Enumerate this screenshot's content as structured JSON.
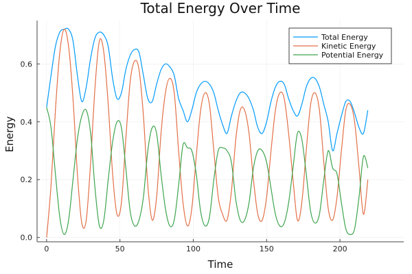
{
  "chart_data": {
    "type": "line",
    "title": "Total Energy Over Time",
    "xlabel": "Time",
    "ylabel": "Energy",
    "xlim": [
      -6.5,
      243.5
    ],
    "ylim": [
      -0.015,
      0.75
    ],
    "xticks": [
      0,
      50,
      100,
      150,
      200
    ],
    "xtick_labels": [
      "0",
      "50",
      "100",
      "150",
      "200"
    ],
    "yticks": [
      0.0,
      0.2,
      0.4,
      0.6
    ],
    "ytick_labels": [
      "0.0",
      "0.2",
      "0.4",
      "0.6"
    ],
    "grid": true,
    "legend_position": "top-right",
    "x": [
      0,
      3,
      6,
      9,
      12,
      15,
      18,
      21,
      24,
      27,
      30,
      33,
      36,
      39,
      42,
      45,
      48,
      51,
      54,
      57,
      60,
      63,
      66,
      69,
      72,
      75,
      78,
      81,
      84,
      87,
      90,
      93,
      96,
      99,
      102,
      105,
      108,
      111,
      114,
      117,
      120,
      123,
      126,
      129,
      132,
      135,
      138,
      141,
      144,
      147,
      150,
      153,
      156,
      159,
      162,
      165,
      168,
      171,
      174,
      177,
      180,
      183,
      186,
      189,
      192,
      195,
      198,
      201,
      204,
      207,
      210,
      213,
      216,
      219
    ],
    "series": [
      {
        "name": "Total Energy",
        "color": "#009AFA",
        "values": [
          0.45,
          0.56,
          0.66,
          0.71,
          0.72,
          0.72,
          0.68,
          0.56,
          0.47,
          0.52,
          0.62,
          0.69,
          0.71,
          0.7,
          0.66,
          0.55,
          0.48,
          0.5,
          0.58,
          0.63,
          0.65,
          0.64,
          0.56,
          0.48,
          0.47,
          0.53,
          0.58,
          0.6,
          0.59,
          0.56,
          0.48,
          0.44,
          0.4,
          0.44,
          0.5,
          0.53,
          0.54,
          0.53,
          0.5,
          0.44,
          0.39,
          0.36,
          0.42,
          0.47,
          0.5,
          0.5,
          0.48,
          0.44,
          0.38,
          0.36,
          0.4,
          0.47,
          0.52,
          0.54,
          0.53,
          0.48,
          0.44,
          0.42,
          0.46,
          0.52,
          0.55,
          0.55,
          0.52,
          0.46,
          0.4,
          0.3,
          0.36,
          0.42,
          0.47,
          0.47,
          0.43,
          0.38,
          0.36,
          0.44
        ]
      },
      {
        "name": "Kinetic Energy",
        "color": "#E26F46",
        "values": [
          0.0,
          0.18,
          0.44,
          0.64,
          0.72,
          0.66,
          0.48,
          0.22,
          0.05,
          0.06,
          0.26,
          0.52,
          0.68,
          0.64,
          0.46,
          0.22,
          0.08,
          0.12,
          0.34,
          0.54,
          0.61,
          0.58,
          0.42,
          0.18,
          0.06,
          0.14,
          0.36,
          0.5,
          0.55,
          0.5,
          0.3,
          0.12,
          0.04,
          0.1,
          0.28,
          0.44,
          0.5,
          0.46,
          0.3,
          0.14,
          0.08,
          0.06,
          0.16,
          0.34,
          0.44,
          0.44,
          0.36,
          0.2,
          0.08,
          0.06,
          0.14,
          0.3,
          0.44,
          0.5,
          0.48,
          0.36,
          0.2,
          0.06,
          0.12,
          0.3,
          0.46,
          0.5,
          0.44,
          0.26,
          0.1,
          0.06,
          0.14,
          0.3,
          0.44,
          0.46,
          0.4,
          0.24,
          0.08,
          0.2
        ]
      },
      {
        "name": "Potential Energy",
        "color": "#3DA44D",
        "values": [
          0.45,
          0.38,
          0.22,
          0.07,
          0.01,
          0.06,
          0.2,
          0.34,
          0.42,
          0.44,
          0.36,
          0.17,
          0.04,
          0.06,
          0.2,
          0.33,
          0.4,
          0.38,
          0.24,
          0.09,
          0.04,
          0.06,
          0.14,
          0.3,
          0.38,
          0.36,
          0.22,
          0.1,
          0.04,
          0.06,
          0.18,
          0.32,
          0.31,
          0.3,
          0.22,
          0.09,
          0.04,
          0.07,
          0.2,
          0.3,
          0.31,
          0.3,
          0.26,
          0.13,
          0.06,
          0.06,
          0.12,
          0.24,
          0.3,
          0.3,
          0.26,
          0.17,
          0.08,
          0.04,
          0.05,
          0.12,
          0.24,
          0.36,
          0.34,
          0.22,
          0.09,
          0.05,
          0.08,
          0.2,
          0.3,
          0.24,
          0.22,
          0.12,
          0.03,
          0.01,
          0.03,
          0.14,
          0.28,
          0.24
        ]
      }
    ]
  }
}
